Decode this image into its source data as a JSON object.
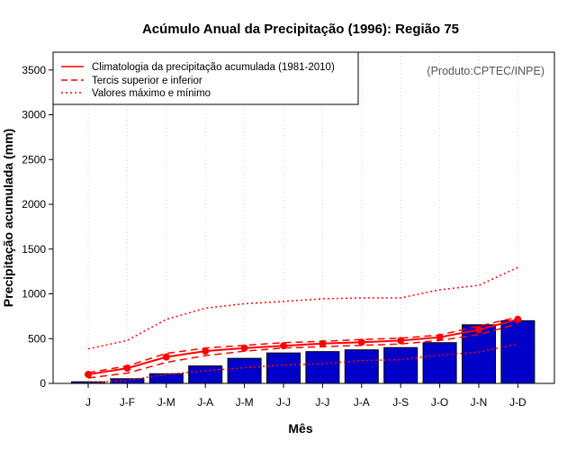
{
  "chart_data": {
    "type": "bar",
    "title": "Acúmulo Anual da Precipitação (1996): Região 75",
    "xlabel": "Mês",
    "ylabel": "Precipitação acumulada (mm)",
    "credit": "(Produto:CPTEC/INPE)",
    "categories": [
      "J",
      "J-F",
      "J-M",
      "J-A",
      "J-M",
      "J-J",
      "J-J",
      "J-A",
      "J-S",
      "J-O",
      "J-N",
      "J-D"
    ],
    "ylim": [
      0,
      3700
    ],
    "yticks": [
      0,
      500,
      1000,
      1500,
      2000,
      2500,
      3000,
      3500
    ],
    "grid": "vertical dotted",
    "legend_position": "top-left",
    "legend": [
      {
        "label": "Climatologia da precipitação acumulada (1981-2010)",
        "style": "solid"
      },
      {
        "label": "Tercis superior e inferior",
        "style": "dashed"
      },
      {
        "label": "Valores máximo e mínimo",
        "style": "dotted"
      }
    ],
    "series": [
      {
        "name": "Precipitação acumulada 1996",
        "kind": "bar",
        "color": "#0000c8",
        "values": [
          18,
          52,
          108,
          195,
          280,
          340,
          355,
          375,
          400,
          455,
          655,
          700
        ]
      },
      {
        "name": "Climatologia da precipitação acumulada (1981-2010)",
        "kind": "line",
        "style": "solid",
        "color": "#ff0000",
        "values": [
          100,
          170,
          295,
          360,
          395,
          420,
          445,
          460,
          478,
          515,
          600,
          715
        ]
      },
      {
        "name": "Tercil superior",
        "kind": "line",
        "style": "dashed",
        "color": "#ff0000",
        "values": [
          120,
          195,
          335,
          395,
          425,
          455,
          470,
          490,
          505,
          540,
          640,
          740
        ]
      },
      {
        "name": "Tercil inferior",
        "kind": "line",
        "style": "dashed",
        "color": "#ff0000",
        "values": [
          60,
          115,
          235,
          310,
          360,
          395,
          410,
          425,
          440,
          480,
          545,
          665
        ]
      },
      {
        "name": "Valor máximo",
        "kind": "line",
        "style": "dotted",
        "color": "#ff0000",
        "values": [
          385,
          480,
          715,
          840,
          890,
          915,
          945,
          955,
          955,
          1045,
          1095,
          1295
        ]
      },
      {
        "name": "Valor mínimo",
        "kind": "line",
        "style": "dotted",
        "color": "#ff0000",
        "values": [
          5,
          35,
          100,
          140,
          175,
          205,
          220,
          255,
          265,
          315,
          350,
          440
        ]
      }
    ]
  }
}
